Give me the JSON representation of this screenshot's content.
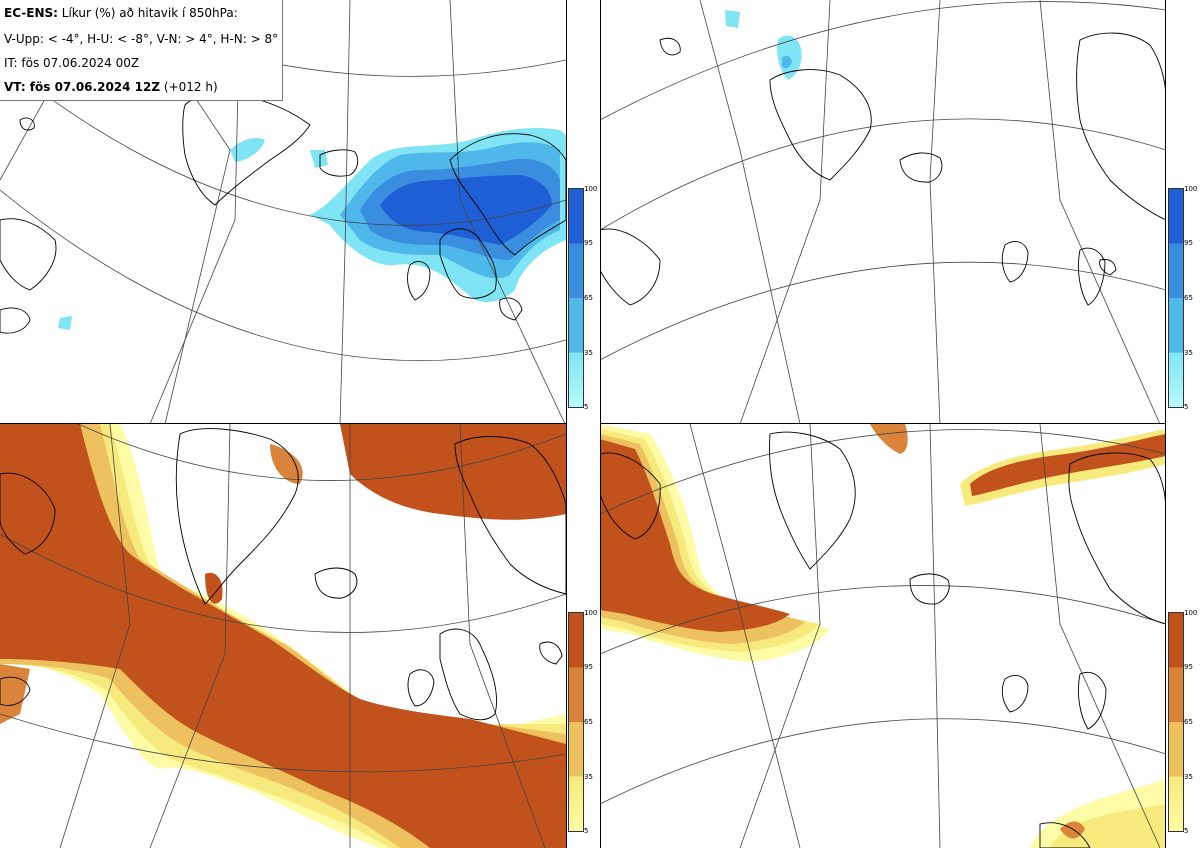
{
  "info": {
    "title_bold": "EC-ENS:",
    "title_rest": " Líkur (%) að hitavik í 850hPa:",
    "legend_line": "V-Upp: < -4°, H-U: < -8°, V-N: > 4°, H-N: > 8°",
    "it_line": "IT: fös 07.06.2024 00Z",
    "vt_bold": "VT: fös 07.06.2024 12Z",
    "vt_rest": " (+012 h)"
  },
  "panels": [
    {
      "id": "V-Upp",
      "threshold": "< -4°",
      "scheme": "blue"
    },
    {
      "id": "H-U",
      "threshold": "< -8°",
      "scheme": "blue"
    },
    {
      "id": "V-N",
      "threshold": "> 4°",
      "scheme": "orange"
    },
    {
      "id": "H-N",
      "threshold": "> 8°",
      "scheme": "orange"
    }
  ],
  "colorbars": {
    "blue": {
      "ticks": [
        "100",
        "95",
        "65",
        "35",
        "5"
      ],
      "colors": [
        "#1f5fd6",
        "#3a8ee0",
        "#4fb8ea",
        "#7fe4f4",
        "#b6fbfb"
      ]
    },
    "orange": {
      "ticks": [
        "100",
        "95",
        "65",
        "35",
        "5"
      ],
      "colors": [
        "#c1521c",
        "#d9843a",
        "#ecc15e",
        "#f7ea7c",
        "#fdfba5"
      ]
    }
  }
}
